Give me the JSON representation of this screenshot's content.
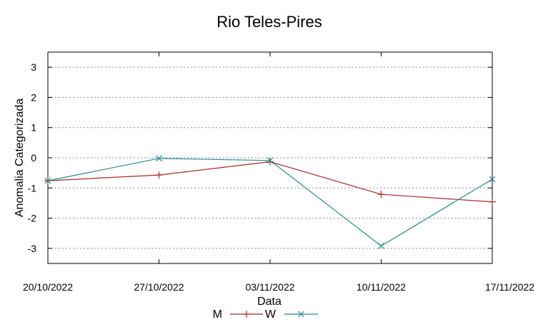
{
  "chart_data": {
    "type": "line",
    "title": "Rio Teles-Pires",
    "xlabel": "Data",
    "ylabel": "Anomalia Categorizada",
    "categories": [
      "20/10/2022",
      "27/10/2022",
      "03/11/2022",
      "10/11/2022",
      "17/11/2022"
    ],
    "ylim": [
      -3.5,
      3.5
    ],
    "yticks": [
      3,
      2,
      1,
      0,
      -1,
      -2,
      -3
    ],
    "grid": true,
    "grid_style": "dotted",
    "legend_position": "bottom",
    "series": [
      {
        "name": "M",
        "color": "#a52a2a",
        "marker": "plus",
        "values": [
          -0.76,
          -0.57,
          -0.13,
          -1.21,
          -1.46
        ]
      },
      {
        "name": "W",
        "color": "#2a8a8a",
        "marker": "cross",
        "values": [
          -0.76,
          -0.02,
          -0.09,
          -2.92,
          -0.71
        ]
      }
    ]
  }
}
